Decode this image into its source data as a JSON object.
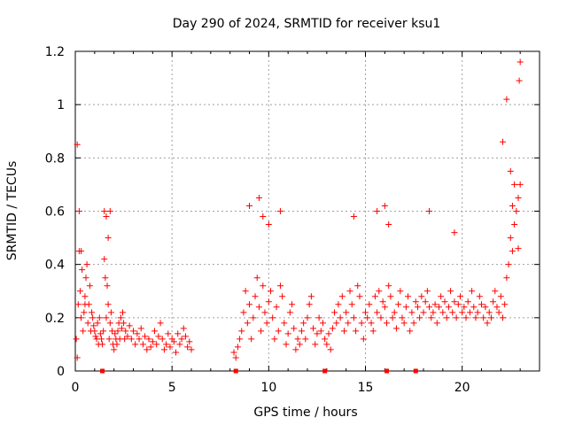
{
  "colors": {
    "points": "#ff0000",
    "grid": "#a0a0a0",
    "axis": "#000000"
  },
  "chart_data": {
    "type": "scatter",
    "title": "Day 290 of 2024, SRMTID for receiver ksu1",
    "xlabel": "GPS time / hours",
    "ylabel": "SRMTID / TECUs",
    "xlim": [
      0,
      24
    ],
    "ylim": [
      0,
      1.2
    ],
    "grid": true,
    "xticks": [
      0,
      5,
      10,
      15,
      20
    ],
    "yticks": [
      0,
      0.2,
      0.4,
      0.6,
      0.8,
      1,
      1.2
    ],
    "xtick_labels": [
      "0",
      "5",
      "10",
      "15",
      "20"
    ],
    "ytick_labels": [
      "0",
      "0.2",
      "0.4",
      "0.6",
      "0.8",
      "1",
      "1.2"
    ],
    "marker": "plus",
    "series": [
      {
        "name": "SRMTID",
        "x": [
          0.05,
          0.1,
          0.15,
          0.2,
          0.25,
          0.3,
          0.35,
          0.4,
          0.45,
          0.5,
          0.55,
          0.6,
          0.65,
          0.7,
          0.75,
          0.8,
          0.85,
          0.9,
          0.95,
          1.0,
          1.05,
          1.1,
          1.15,
          1.2,
          1.25,
          1.3,
          1.35,
          1.4,
          1.45,
          1.5,
          1.55,
          1.6,
          1.65,
          1.7,
          1.75,
          1.8,
          1.85,
          1.9,
          1.95,
          2.0,
          2.05,
          2.1,
          2.15,
          2.2,
          2.25,
          2.3,
          2.35,
          2.4,
          2.45,
          2.5,
          2.55,
          2.6,
          2.7,
          2.8,
          2.9,
          3.0,
          3.1,
          3.2,
          3.3,
          3.4,
          3.5,
          3.6,
          3.7,
          3.8,
          3.9,
          4.0,
          4.1,
          4.2,
          4.3,
          4.4,
          4.5,
          4.6,
          4.7,
          4.8,
          4.9,
          5.0,
          5.1,
          5.2,
          5.3,
          5.4,
          5.5,
          5.6,
          5.7,
          5.8,
          5.9,
          6.0,
          8.2,
          8.3,
          8.4,
          8.5,
          8.6,
          8.7,
          8.8,
          8.9,
          9.0,
          9.1,
          9.2,
          9.3,
          9.4,
          9.5,
          9.6,
          9.7,
          9.8,
          9.9,
          10.0,
          10.1,
          10.2,
          10.3,
          10.4,
          10.5,
          10.6,
          10.7,
          10.8,
          10.9,
          11.0,
          11.1,
          11.2,
          11.3,
          11.4,
          11.5,
          11.6,
          11.7,
          11.8,
          11.9,
          12.0,
          12.1,
          12.2,
          12.3,
          12.4,
          12.5,
          12.6,
          12.7,
          12.8,
          12.9,
          13.0,
          13.1,
          13.2,
          13.3,
          13.4,
          13.5,
          13.6,
          13.7,
          13.8,
          13.9,
          14.0,
          14.1,
          14.2,
          14.3,
          14.4,
          14.5,
          14.6,
          14.7,
          14.8,
          14.9,
          15.0,
          15.1,
          15.2,
          15.3,
          15.4,
          15.5,
          15.6,
          15.7,
          15.8,
          15.9,
          16.0,
          16.1,
          16.2,
          16.3,
          16.4,
          16.5,
          16.6,
          16.7,
          16.8,
          16.9,
          17.0,
          17.1,
          17.2,
          17.3,
          17.4,
          17.5,
          17.6,
          17.7,
          17.8,
          17.9,
          18.0,
          18.1,
          18.2,
          18.3,
          18.4,
          18.5,
          18.6,
          18.7,
          18.8,
          18.9,
          19.0,
          19.1,
          19.2,
          19.3,
          19.4,
          19.5,
          19.6,
          19.7,
          19.8,
          19.9,
          20.0,
          20.1,
          20.2,
          20.3,
          20.4,
          20.5,
          20.6,
          20.7,
          20.8,
          20.9,
          21.0,
          21.1,
          21.2,
          21.3,
          21.4,
          21.5,
          21.6,
          21.7,
          21.8,
          21.9,
          22.0,
          22.1,
          22.2,
          22.3,
          22.4,
          22.5,
          22.6,
          22.7,
          22.8,
          22.9,
          23.0,
          0.1,
          0.2,
          0.3,
          0.5,
          1.5,
          1.6,
          1.7,
          1.8,
          9.0,
          9.5,
          9.7,
          10.0,
          10.6,
          14.4,
          15.6,
          16.0,
          16.2,
          18.3,
          19.6,
          22.1,
          22.3,
          22.5,
          22.6,
          22.7,
          22.9,
          22.95,
          23.0
        ],
        "y": [
          0.12,
          0.05,
          0.25,
          0.45,
          0.3,
          0.2,
          0.38,
          0.15,
          0.22,
          0.28,
          0.35,
          0.4,
          0.18,
          0.25,
          0.32,
          0.15,
          0.22,
          0.2,
          0.17,
          0.15,
          0.13,
          0.12,
          0.18,
          0.1,
          0.2,
          0.14,
          0.12,
          0.1,
          0.15,
          0.42,
          0.35,
          0.2,
          0.32,
          0.25,
          0.12,
          0.18,
          0.22,
          0.15,
          0.1,
          0.08,
          0.14,
          0.12,
          0.1,
          0.15,
          0.18,
          0.12,
          0.2,
          0.16,
          0.22,
          0.18,
          0.12,
          0.15,
          0.13,
          0.17,
          0.12,
          0.15,
          0.1,
          0.14,
          0.12,
          0.16,
          0.1,
          0.13,
          0.08,
          0.12,
          0.09,
          0.11,
          0.15,
          0.1,
          0.13,
          0.18,
          0.12,
          0.08,
          0.1,
          0.14,
          0.09,
          0.12,
          0.11,
          0.07,
          0.14,
          0.1,
          0.12,
          0.16,
          0.13,
          0.09,
          0.11,
          0.08,
          0.07,
          0.05,
          0.09,
          0.12,
          0.15,
          0.22,
          0.3,
          0.18,
          0.25,
          0.12,
          0.2,
          0.28,
          0.35,
          0.24,
          0.15,
          0.32,
          0.22,
          0.18,
          0.26,
          0.3,
          0.2,
          0.12,
          0.24,
          0.15,
          0.32,
          0.28,
          0.18,
          0.1,
          0.14,
          0.22,
          0.25,
          0.16,
          0.08,
          0.12,
          0.1,
          0.15,
          0.18,
          0.12,
          0.2,
          0.25,
          0.28,
          0.16,
          0.1,
          0.14,
          0.2,
          0.15,
          0.18,
          0.12,
          0.1,
          0.14,
          0.08,
          0.16,
          0.22,
          0.18,
          0.25,
          0.2,
          0.28,
          0.15,
          0.22,
          0.18,
          0.3,
          0.25,
          0.2,
          0.15,
          0.32,
          0.28,
          0.18,
          0.12,
          0.22,
          0.2,
          0.25,
          0.18,
          0.15,
          0.28,
          0.22,
          0.3,
          0.2,
          0.26,
          0.24,
          0.18,
          0.32,
          0.28,
          0.2,
          0.22,
          0.16,
          0.25,
          0.3,
          0.2,
          0.18,
          0.24,
          0.28,
          0.15,
          0.22,
          0.18,
          0.26,
          0.24,
          0.2,
          0.28,
          0.22,
          0.26,
          0.3,
          0.24,
          0.2,
          0.22,
          0.25,
          0.18,
          0.24,
          0.28,
          0.22,
          0.26,
          0.2,
          0.24,
          0.3,
          0.22,
          0.26,
          0.2,
          0.25,
          0.28,
          0.22,
          0.24,
          0.2,
          0.26,
          0.22,
          0.3,
          0.24,
          0.2,
          0.22,
          0.28,
          0.25,
          0.2,
          0.24,
          0.18,
          0.22,
          0.2,
          0.26,
          0.3,
          0.24,
          0.22,
          0.28,
          0.2,
          0.25,
          0.35,
          0.4,
          0.5,
          0.45,
          0.55,
          0.6,
          0.65,
          0.7,
          0.85,
          0.6,
          0.45,
          0.25,
          0.6,
          0.58,
          0.5,
          0.6,
          0.62,
          0.65,
          0.58,
          0.55,
          0.6,
          0.58,
          0.6,
          0.62,
          0.55,
          0.6,
          0.52,
          0.86,
          1.02,
          0.75,
          0.62,
          0.7,
          0.46,
          1.09,
          1.16
        ]
      }
    ],
    "x_ticks_marks": [
      1.4,
      8.3,
      12.9,
      16.1,
      17.6
    ]
  }
}
